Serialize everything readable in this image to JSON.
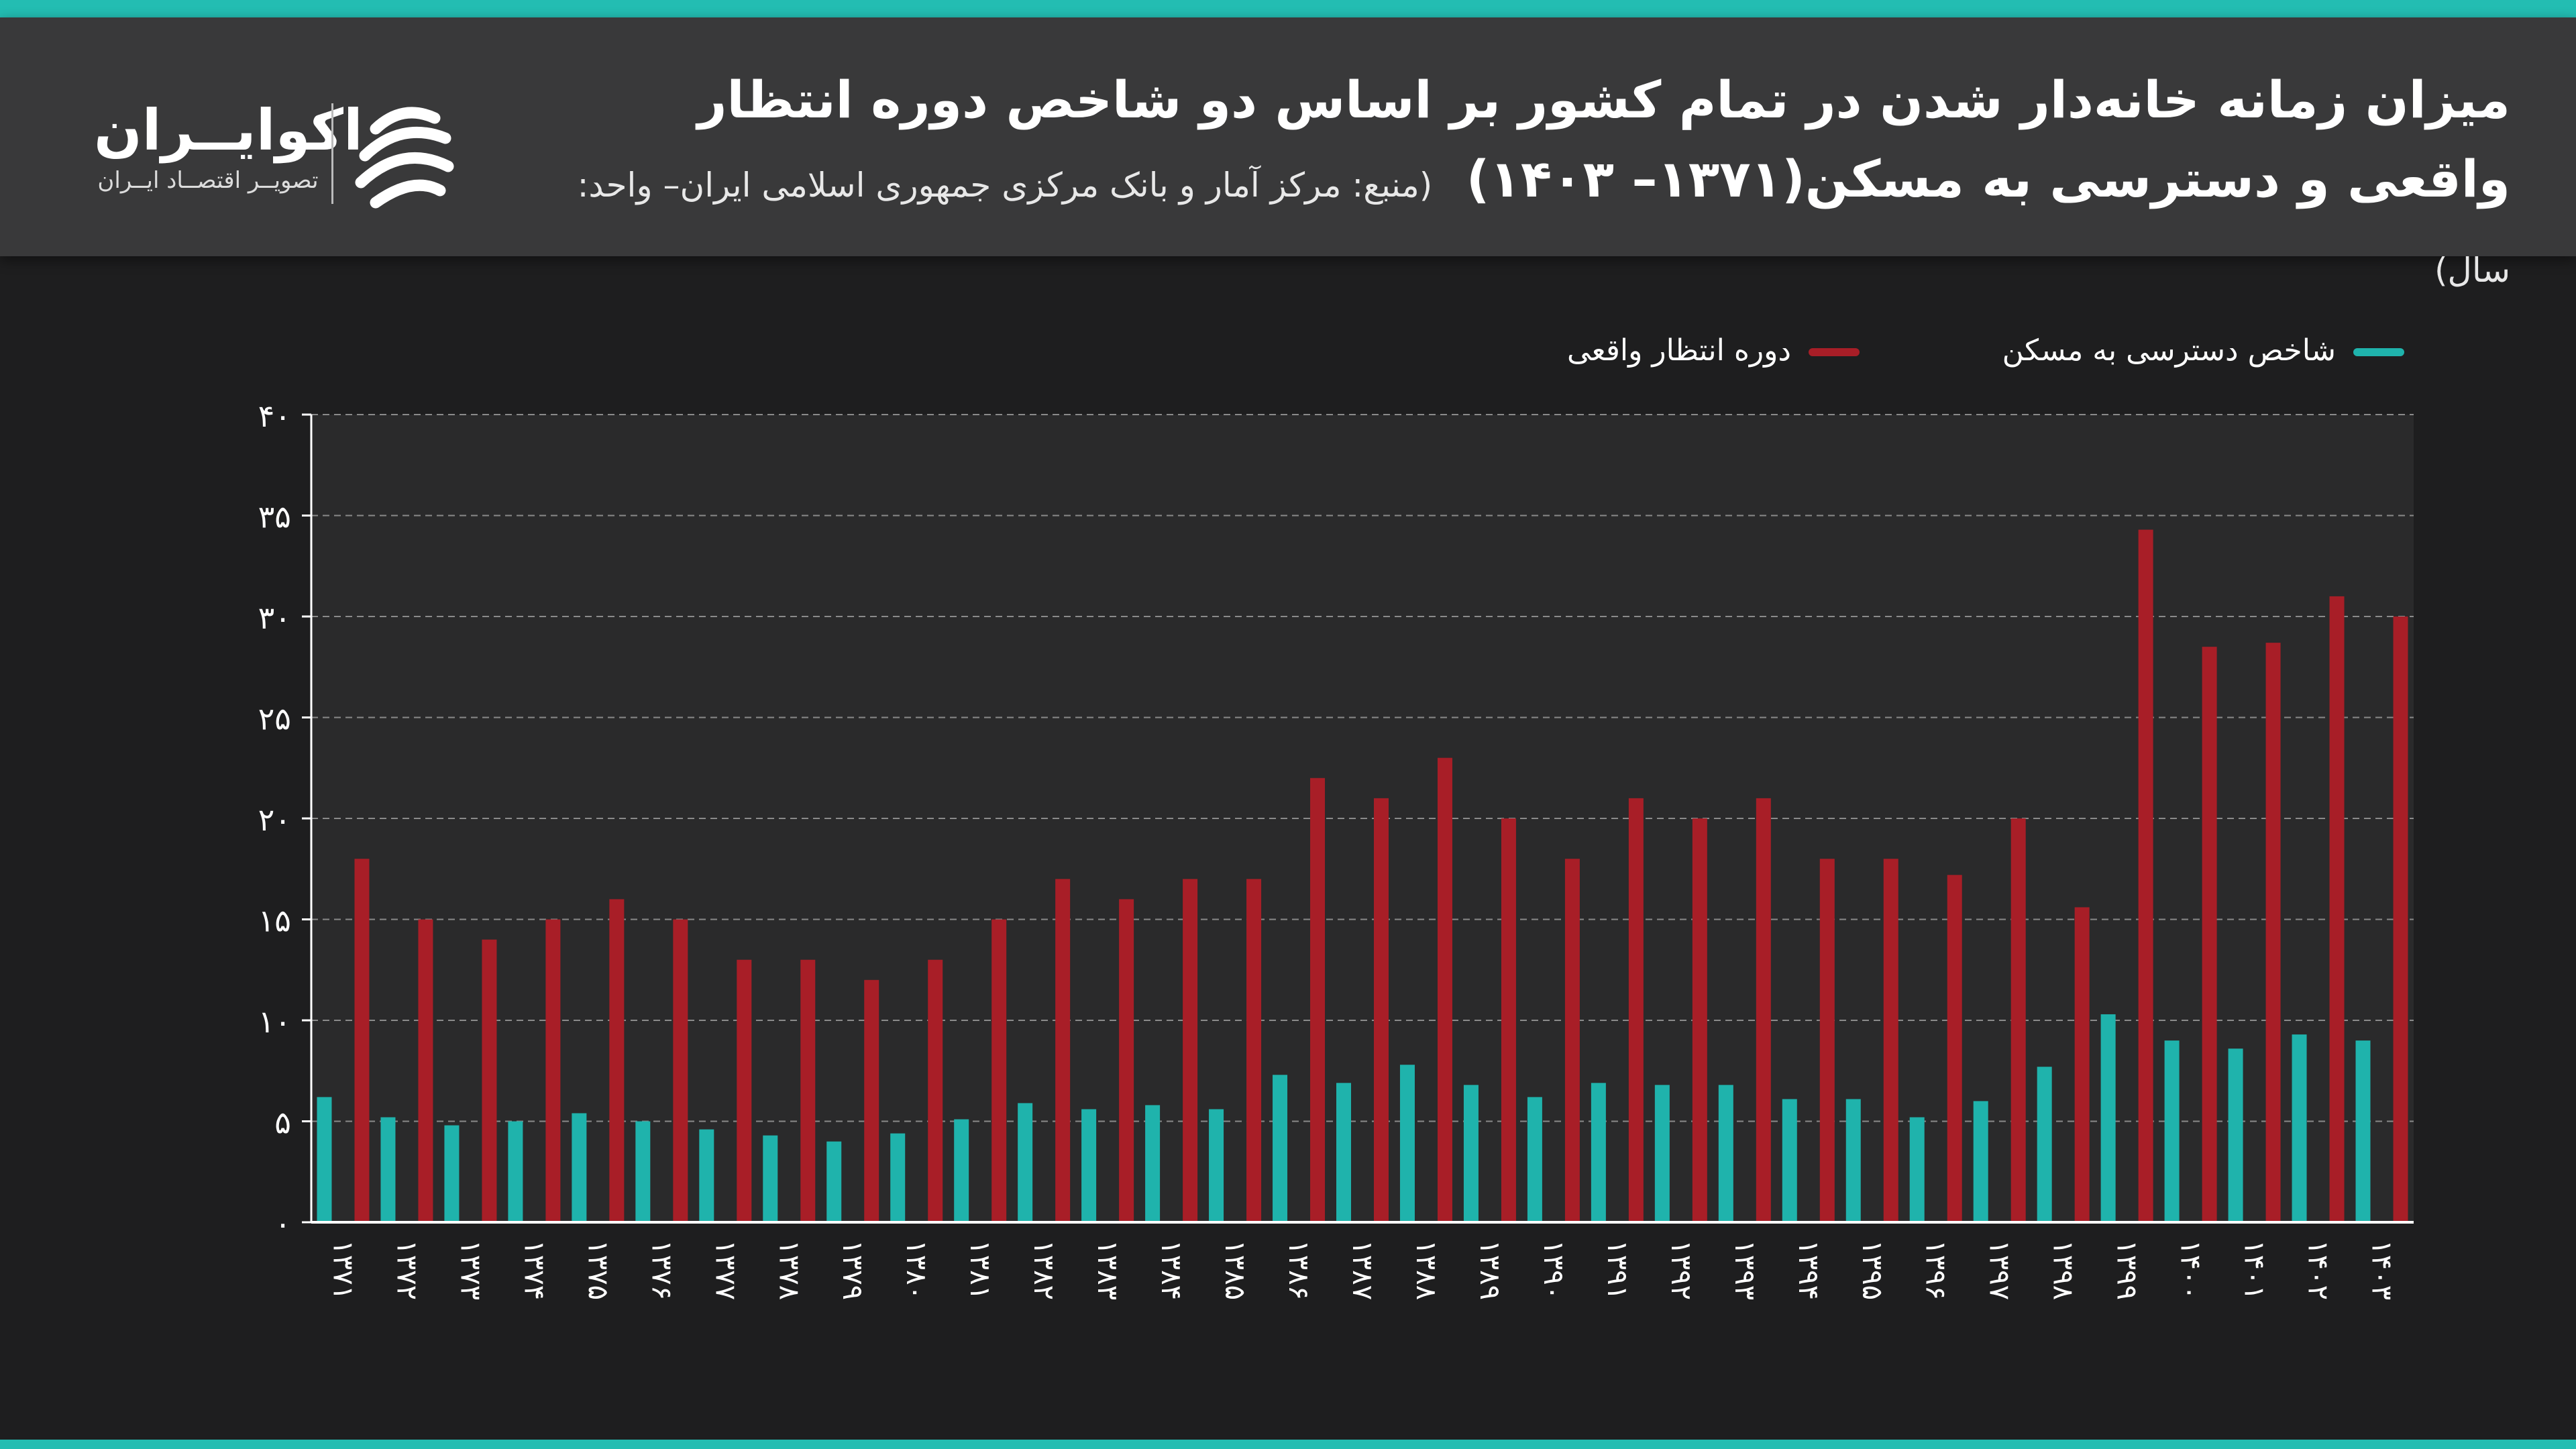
{
  "header": {
    "title": "میزان زمانه خانه‌دار شدن در تمام کشور بر اساس دو شاخص دوره انتظار واقعی و دسترسی به مسکن(۱۳۷۱– ۱۴۰۳)",
    "source": "(منبع: مرکز آمار و بانک مرکزی جمهوری اسلامی ایران– واحد: سال)"
  },
  "logo": {
    "name": "اکوایــران",
    "tagline": "تصویــر اقتصــاد ایــران",
    "icon": "ecoiran-swirl-icon"
  },
  "colors": {
    "accent": "#1fb7ad",
    "stripe": "#23bdb2",
    "red_series": "#a81e27",
    "teal_series": "#1fb3ac",
    "background": "#1e1e1f",
    "plot_background": "#2a2a2b",
    "header_background": "#39393a"
  },
  "chart_data": {
    "type": "bar",
    "title": "میزان زمانه خانه‌دار شدن در تمام کشور بر اساس دو شاخص دوره انتظار واقعی و دسترسی به مسکن(۱۳۷۱– ۱۴۰۳)",
    "xlabel": "",
    "ylabel": "",
    "ylim": [
      0,
      40
    ],
    "yticks": [
      0,
      5,
      10,
      15,
      20,
      25,
      30,
      35,
      40
    ],
    "ytick_labels": [
      "۰",
      "۵",
      "۱۰",
      "۱۵",
      "۲۰",
      "۲۵",
      "۳۰",
      "۳۵",
      "۴۰"
    ],
    "grid": true,
    "legend_position": "top-right",
    "categories": [
      "۱۳۷۱",
      "۱۳۷۲",
      "۱۳۷۳",
      "۱۳۷۴",
      "۱۳۷۵",
      "۱۳۷۶",
      "۱۳۷۷",
      "۱۳۷۸",
      "۱۳۷۹",
      "۱۳۸۰",
      "۱۳۸۱",
      "۱۳۸۲",
      "۱۳۸۳",
      "۱۳۸۴",
      "۱۳۸۵",
      "۱۳۸۶",
      "۱۳۸۷",
      "۱۳۸۸",
      "۱۳۸۹",
      "۱۳۹۰",
      "۱۳۹۱",
      "۱۳۹۲",
      "۱۳۹۳",
      "۱۳۹۴",
      "۱۳۹۵",
      "۱۳۹۶",
      "۱۳۹۷",
      "۱۳۹۸",
      "۱۳۹۹",
      "۱۴۰۰",
      "۱۴۰۱",
      "۱۴۰۲",
      "۱۴۰۳"
    ],
    "series": [
      {
        "name": "شاخص دسترسی به مسکن",
        "color": "#1fb3ac",
        "values": [
          6.2,
          5.2,
          4.8,
          5.0,
          5.4,
          5.0,
          4.6,
          4.3,
          4.0,
          4.4,
          5.1,
          5.9,
          5.6,
          5.8,
          5.6,
          7.3,
          6.9,
          7.8,
          6.8,
          6.2,
          6.9,
          6.8,
          6.8,
          6.1,
          6.1,
          5.2,
          6.0,
          7.7,
          10.3,
          9.0,
          8.6,
          9.3,
          9.0
        ]
      },
      {
        "name": "دوره انتظار واقعی",
        "color": "#a81e27",
        "values": [
          18.0,
          15.0,
          14.0,
          15.0,
          16.0,
          15.0,
          13.0,
          13.0,
          12.0,
          13.0,
          15.0,
          17.0,
          16.0,
          17.0,
          17.0,
          22.0,
          21.0,
          23.0,
          20.0,
          18.0,
          21.0,
          20.0,
          21.0,
          18.0,
          18.0,
          17.2,
          20.0,
          15.6,
          34.3,
          28.5,
          28.7,
          31.0,
          30.0
        ]
      }
    ]
  }
}
